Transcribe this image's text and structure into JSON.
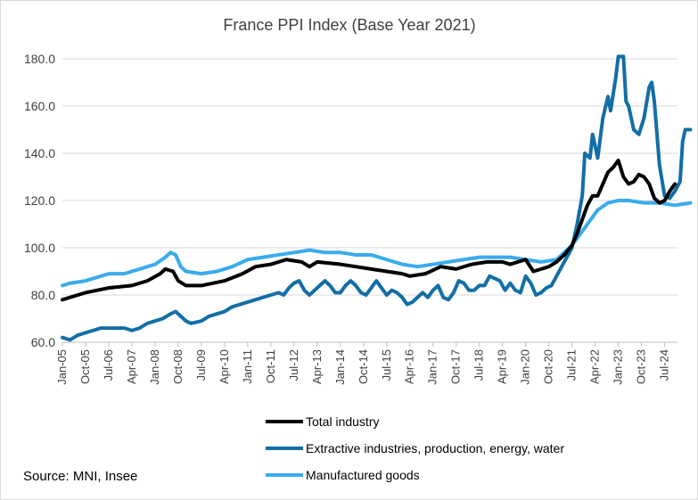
{
  "chart_data": {
    "type": "line",
    "title": "France PPI Index (Base Year 2021)",
    "source": "Source: MNI, Insee",
    "xlabel": "",
    "ylabel": "",
    "ylim": [
      60,
      180
    ],
    "yticks": [
      "60.0",
      "80.0",
      "100.0",
      "120.0",
      "140.0",
      "160.0",
      "180.0"
    ],
    "x_start": "Jan-05",
    "x_end": "Dec-24",
    "xticks": [
      {
        "label": "Jan-05",
        "index": 0
      },
      {
        "label": "Oct-05",
        "index": 9
      },
      {
        "label": "Jul-06",
        "index": 18
      },
      {
        "label": "Apr-07",
        "index": 27
      },
      {
        "label": "Jan-08",
        "index": 36
      },
      {
        "label": "Oct-08",
        "index": 45
      },
      {
        "label": "Jul-09",
        "index": 54
      },
      {
        "label": "Apr-10",
        "index": 63
      },
      {
        "label": "Jan-11",
        "index": 72
      },
      {
        "label": "Oct-11",
        "index": 81
      },
      {
        "label": "Jul-12",
        "index": 90
      },
      {
        "label": "Apr-13",
        "index": 99
      },
      {
        "label": "Jan-14",
        "index": 108
      },
      {
        "label": "Oct-14",
        "index": 117
      },
      {
        "label": "Jul-15",
        "index": 126
      },
      {
        "label": "Apr-16",
        "index": 135
      },
      {
        "label": "Jan-17",
        "index": 144
      },
      {
        "label": "Oct-17",
        "index": 153
      },
      {
        "label": "Jul-18",
        "index": 162
      },
      {
        "label": "Apr-19",
        "index": 171
      },
      {
        "label": "Jan-20",
        "index": 180
      },
      {
        "label": "Oct-20",
        "index": 189
      },
      {
        "label": "Jul-21",
        "index": 198
      },
      {
        "label": "Apr-22",
        "index": 207
      },
      {
        "label": "Jan-23",
        "index": 216
      },
      {
        "label": "Oct-23",
        "index": 225
      },
      {
        "label": "Jul-24",
        "index": 234
      }
    ],
    "series": [
      {
        "name": "Total industry",
        "color": "#000000",
        "points": [
          [
            0,
            78
          ],
          [
            3,
            79
          ],
          [
            9,
            81
          ],
          [
            18,
            83
          ],
          [
            27,
            84
          ],
          [
            33,
            86
          ],
          [
            38,
            89
          ],
          [
            40,
            91
          ],
          [
            43,
            90
          ],
          [
            45,
            86
          ],
          [
            48,
            84
          ],
          [
            54,
            84
          ],
          [
            63,
            86
          ],
          [
            70,
            89
          ],
          [
            75,
            92
          ],
          [
            81,
            93
          ],
          [
            87,
            95
          ],
          [
            93,
            94
          ],
          [
            96,
            92
          ],
          [
            99,
            94
          ],
          [
            108,
            93
          ],
          [
            114,
            92
          ],
          [
            120,
            91
          ],
          [
            126,
            90
          ],
          [
            132,
            89
          ],
          [
            135,
            88
          ],
          [
            141,
            89
          ],
          [
            147,
            92
          ],
          [
            153,
            91
          ],
          [
            159,
            93
          ],
          [
            165,
            94
          ],
          [
            171,
            94
          ],
          [
            174,
            93
          ],
          [
            177,
            94
          ],
          [
            180,
            95
          ],
          [
            183,
            90
          ],
          [
            186,
            91
          ],
          [
            189,
            92
          ],
          [
            192,
            94
          ],
          [
            195,
            97
          ],
          [
            198,
            101
          ],
          [
            200,
            106
          ],
          [
            202,
            112
          ],
          [
            204,
            118
          ],
          [
            206,
            122
          ],
          [
            208,
            122
          ],
          [
            210,
            127
          ],
          [
            212,
            132
          ],
          [
            214,
            134
          ],
          [
            216,
            137
          ],
          [
            218,
            130
          ],
          [
            220,
            127
          ],
          [
            222,
            128
          ],
          [
            224,
            131
          ],
          [
            226,
            130
          ],
          [
            228,
            127
          ],
          [
            230,
            121
          ],
          [
            232,
            119
          ],
          [
            234,
            120
          ],
          [
            236,
            124
          ],
          [
            238,
            127
          ]
        ]
      },
      {
        "name": "Extractive industries, production, energy, water",
        "color": "#136ea6",
        "points": [
          [
            0,
            62
          ],
          [
            3,
            61
          ],
          [
            6,
            63
          ],
          [
            9,
            64
          ],
          [
            12,
            65
          ],
          [
            15,
            66
          ],
          [
            18,
            66
          ],
          [
            24,
            66
          ],
          [
            27,
            65
          ],
          [
            30,
            66
          ],
          [
            33,
            68
          ],
          [
            36,
            69
          ],
          [
            39,
            70
          ],
          [
            42,
            72
          ],
          [
            44,
            73
          ],
          [
            46,
            71
          ],
          [
            48,
            69
          ],
          [
            50,
            68
          ],
          [
            54,
            69
          ],
          [
            57,
            71
          ],
          [
            60,
            72
          ],
          [
            63,
            73
          ],
          [
            66,
            75
          ],
          [
            69,
            76
          ],
          [
            72,
            77
          ],
          [
            75,
            78
          ],
          [
            78,
            79
          ],
          [
            81,
            80
          ],
          [
            84,
            81
          ],
          [
            86,
            80
          ],
          [
            88,
            83
          ],
          [
            90,
            85
          ],
          [
            92,
            86
          ],
          [
            94,
            82
          ],
          [
            96,
            80
          ],
          [
            98,
            82
          ],
          [
            100,
            84
          ],
          [
            102,
            86
          ],
          [
            104,
            84
          ],
          [
            106,
            81
          ],
          [
            108,
            81
          ],
          [
            110,
            84
          ],
          [
            112,
            86
          ],
          [
            114,
            84
          ],
          [
            116,
            81
          ],
          [
            118,
            80
          ],
          [
            120,
            83
          ],
          [
            122,
            86
          ],
          [
            124,
            83
          ],
          [
            126,
            80
          ],
          [
            128,
            82
          ],
          [
            130,
            81
          ],
          [
            132,
            79
          ],
          [
            134,
            76
          ],
          [
            136,
            77
          ],
          [
            138,
            79
          ],
          [
            140,
            81
          ],
          [
            142,
            79
          ],
          [
            144,
            82
          ],
          [
            146,
            84
          ],
          [
            148,
            79
          ],
          [
            150,
            78
          ],
          [
            152,
            81
          ],
          [
            154,
            86
          ],
          [
            156,
            85
          ],
          [
            158,
            82
          ],
          [
            160,
            82
          ],
          [
            162,
            84
          ],
          [
            164,
            84
          ],
          [
            166,
            88
          ],
          [
            168,
            87
          ],
          [
            170,
            86
          ],
          [
            172,
            82
          ],
          [
            174,
            85
          ],
          [
            176,
            82
          ],
          [
            178,
            81
          ],
          [
            180,
            88
          ],
          [
            182,
            85
          ],
          [
            184,
            80
          ],
          [
            186,
            81
          ],
          [
            188,
            83
          ],
          [
            190,
            84
          ],
          [
            192,
            88
          ],
          [
            194,
            92
          ],
          [
            196,
            96
          ],
          [
            198,
            100
          ],
          [
            200,
            110
          ],
          [
            202,
            122
          ],
          [
            203,
            140
          ],
          [
            205,
            138
          ],
          [
            206,
            148
          ],
          [
            208,
            138
          ],
          [
            210,
            155
          ],
          [
            212,
            164
          ],
          [
            213,
            158
          ],
          [
            215,
            172
          ],
          [
            216,
            181
          ],
          [
            218,
            182
          ],
          [
            219,
            162
          ],
          [
            220,
            160
          ],
          [
            222,
            150
          ],
          [
            224,
            148
          ],
          [
            226,
            155
          ],
          [
            228,
            168
          ],
          [
            229,
            170
          ],
          [
            230,
            162
          ],
          [
            232,
            135
          ],
          [
            234,
            122
          ],
          [
            236,
            121
          ],
          [
            238,
            124
          ],
          [
            240,
            128
          ],
          [
            241,
            145
          ],
          [
            242,
            150
          ],
          [
            244,
            150
          ]
        ]
      },
      {
        "name": "Manufactured goods",
        "color": "#3aabec",
        "points": [
          [
            0,
            84
          ],
          [
            3,
            85
          ],
          [
            9,
            86
          ],
          [
            15,
            88
          ],
          [
            18,
            89
          ],
          [
            24,
            89
          ],
          [
            30,
            91
          ],
          [
            36,
            93
          ],
          [
            40,
            96
          ],
          [
            42,
            98
          ],
          [
            44,
            97
          ],
          [
            46,
            92
          ],
          [
            48,
            90
          ],
          [
            54,
            89
          ],
          [
            60,
            90
          ],
          [
            66,
            92
          ],
          [
            72,
            95
          ],
          [
            78,
            96
          ],
          [
            84,
            97
          ],
          [
            90,
            98
          ],
          [
            96,
            99
          ],
          [
            102,
            98
          ],
          [
            108,
            98
          ],
          [
            114,
            97
          ],
          [
            120,
            97
          ],
          [
            126,
            95
          ],
          [
            132,
            93
          ],
          [
            138,
            92
          ],
          [
            144,
            93
          ],
          [
            150,
            94
          ],
          [
            156,
            95
          ],
          [
            162,
            96
          ],
          [
            168,
            96
          ],
          [
            174,
            96
          ],
          [
            180,
            95
          ],
          [
            186,
            94
          ],
          [
            192,
            95
          ],
          [
            198,
            101
          ],
          [
            204,
            110
          ],
          [
            208,
            116
          ],
          [
            212,
            119
          ],
          [
            216,
            120
          ],
          [
            220,
            120
          ],
          [
            226,
            119
          ],
          [
            232,
            119
          ],
          [
            238,
            118
          ],
          [
            244,
            119
          ]
        ]
      }
    ],
    "legend": [
      "Total industry",
      "Extractive industries, production, energy, water",
      "Manufactured goods"
    ]
  }
}
